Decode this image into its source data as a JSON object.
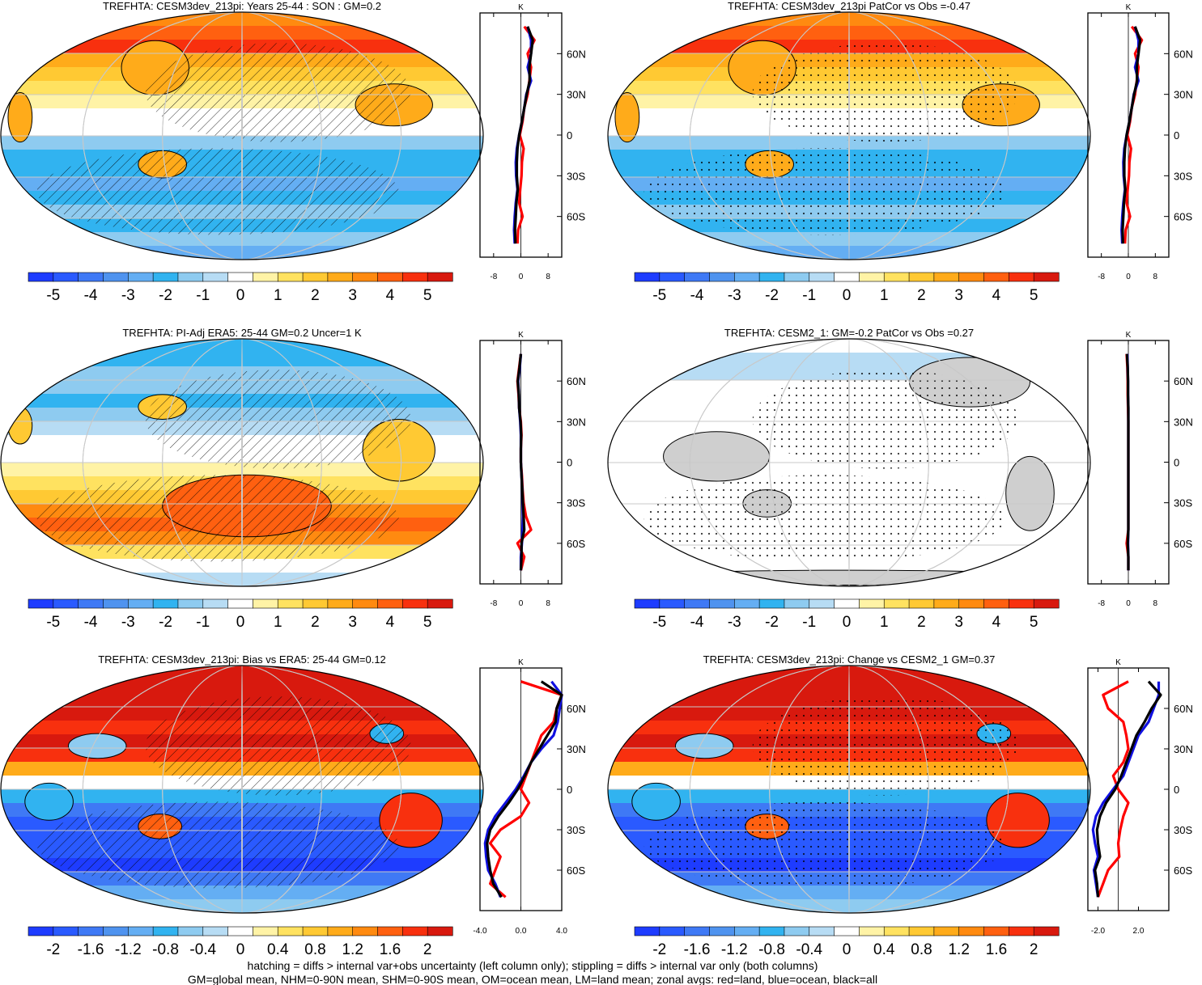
{
  "colors": {
    "fill_scale": [
      "#1e3cff",
      "#2a5aff",
      "#3f79f5",
      "#4f93ef",
      "#64aef3",
      "#31b3f0",
      "#8ecbf0",
      "#b7dcf4",
      "#ffffff",
      "#fff3a6",
      "#ffe260",
      "#ffc933",
      "#ffab1a",
      "#ff8a10",
      "#ff6010",
      "#f8300e",
      "#d8190e"
    ],
    "land_gray": "#cfcfcf",
    "contour_line": "#000000",
    "graticule": "#c8c8c8",
    "zonal_land": "#ff0000",
    "zonal_ocean": "#1010e0",
    "zonal_all": "#000000"
  },
  "chart_data": [
    {
      "type": "heatmap",
      "title": "TREFHTA: CESM3dev_213pi: Years 25-44 : SON : GM=0.2",
      "colorbar_ticks": [
        "-5",
        "-4",
        "-3",
        "-2",
        "-1",
        "0",
        "1",
        "2",
        "3",
        "4",
        "5"
      ],
      "pattern": "hatching",
      "field": "warm_north",
      "zonal_mean": {
        "unit": "K",
        "xticks": [
          "-8",
          "0",
          "8"
        ],
        "xlim": [
          -12,
          12
        ],
        "yticks": [
          "60N",
          "30N",
          "0",
          "30S",
          "60S"
        ],
        "lat": [
          80,
          70,
          60,
          50,
          40,
          30,
          20,
          10,
          0,
          -10,
          -20,
          -30,
          -40,
          -50,
          -60,
          -70,
          -80
        ],
        "land": [
          1,
          4,
          2,
          3,
          2.5,
          2,
          1,
          0.5,
          -0.3,
          0.8,
          0.3,
          0.2,
          -0.2,
          -0.5,
          0.5,
          -0.8,
          -1
        ],
        "ocean": [
          2,
          3,
          3,
          2,
          3,
          1.6,
          1,
          0.3,
          -0.5,
          -1.2,
          -1.5,
          -1.4,
          -1,
          -1.5,
          -1.8,
          -2,
          -1.8
        ],
        "all": [
          2,
          3.5,
          3,
          2.5,
          2.6,
          1.7,
          1,
          0.3,
          -0.5,
          -1,
          -1.2,
          -1.2,
          -0.9,
          -1.3,
          -1.5,
          -1.7,
          -1.6
        ]
      }
    },
    {
      "type": "heatmap",
      "title": "TREFHTA: CESM3dev_213pi PatCor vs Obs =-0.47",
      "colorbar_ticks": [
        "-5",
        "-4",
        "-3",
        "-2",
        "-1",
        "0",
        "1",
        "2",
        "3",
        "4",
        "5"
      ],
      "pattern": "stippling",
      "field": "warm_north",
      "zonal_mean": {
        "unit": "K",
        "xticks": [
          "-8",
          "0",
          "8"
        ],
        "xlim": [
          -12,
          12
        ],
        "yticks": [
          "60N",
          "30N",
          "0",
          "30S",
          "60S"
        ],
        "lat": [
          80,
          70,
          60,
          50,
          40,
          30,
          20,
          10,
          0,
          -10,
          -20,
          -30,
          -40,
          -50,
          -60,
          -70,
          -80
        ],
        "land": [
          1,
          4,
          2,
          3,
          2.5,
          2,
          1,
          0.5,
          -0.3,
          0.8,
          0.3,
          0.2,
          -0.2,
          -0.5,
          0.5,
          -0.8,
          -1
        ],
        "ocean": [
          2,
          3,
          3,
          2,
          3,
          1.6,
          1,
          0.3,
          -0.5,
          -1.2,
          -1.5,
          -1.4,
          -1,
          -1.5,
          -1.8,
          -2,
          -1.8
        ],
        "all": [
          2,
          3.5,
          3,
          2.5,
          2.6,
          1.7,
          1,
          0.3,
          -0.5,
          -1,
          -1.2,
          -1.2,
          -0.9,
          -1.3,
          -1.5,
          -1.7,
          -1.6
        ]
      }
    },
    {
      "type": "heatmap",
      "title": "TREFHTA: PI-Adj ERA5: 25-44 GM=0.2 Uncer=1 K",
      "colorbar_ticks": [
        "-5",
        "-4",
        "-3",
        "-2",
        "-1",
        "0",
        "1",
        "2",
        "3",
        "4",
        "5"
      ],
      "pattern": "hatching",
      "field": "warm_south",
      "zonal_mean": {
        "unit": "K",
        "xticks": [
          "-8",
          "0",
          "8"
        ],
        "xlim": [
          -12,
          12
        ],
        "yticks": [
          "60N",
          "30N",
          "0",
          "30S",
          "60S"
        ],
        "lat": [
          80,
          70,
          60,
          50,
          40,
          30,
          20,
          10,
          0,
          -10,
          -20,
          -30,
          -40,
          -50,
          -60,
          -70,
          -80
        ],
        "land": [
          0,
          -0.5,
          -1,
          -0.7,
          -0.5,
          0,
          0.2,
          0,
          0,
          0.3,
          0.5,
          0.8,
          1.5,
          3,
          -1,
          1,
          0
        ],
        "ocean": [
          0,
          -0.3,
          -0.8,
          -0.6,
          -0.5,
          -0.2,
          0,
          0,
          0,
          0.2,
          0.4,
          0.5,
          0.6,
          0.5,
          0.3,
          0,
          0
        ],
        "all": [
          0,
          -0.4,
          -0.9,
          -0.6,
          -0.5,
          -0.1,
          0.1,
          0,
          0,
          0.2,
          0.4,
          0.6,
          0.8,
          1,
          0.2,
          0.2,
          0
        ]
      }
    },
    {
      "type": "heatmap",
      "title": "TREFHTA: CESM2_1: GM=-0.2 PatCor vs Obs =0.27",
      "colorbar_ticks": [
        "-5",
        "-4",
        "-3",
        "-2",
        "-1",
        "0",
        "1",
        "2",
        "3",
        "4",
        "5"
      ],
      "pattern": "stippling",
      "field": "neutral",
      "zonal_mean": {
        "unit": "K",
        "xticks": [
          "-8",
          "0",
          "8"
        ],
        "xlim": [
          -12,
          12
        ],
        "yticks": [
          "60N",
          "30N",
          "0",
          "30S",
          "60S"
        ],
        "lat": [
          80,
          70,
          60,
          50,
          40,
          30,
          20,
          10,
          0,
          -10,
          -20,
          -30,
          -40,
          -50,
          -60,
          -70,
          -80
        ],
        "land": [
          -0.5,
          -0.3,
          -0.2,
          -0.2,
          -0.1,
          0,
          0,
          0,
          0,
          0,
          0,
          0,
          0,
          0,
          -0.5,
          0,
          0
        ],
        "ocean": [
          -0.3,
          -0.2,
          -0.1,
          -0.1,
          0,
          0,
          0,
          0,
          0,
          0,
          0,
          0,
          0,
          0,
          -0.1,
          0,
          0
        ],
        "all": [
          -0.4,
          -0.2,
          -0.1,
          -0.1,
          0,
          0,
          0,
          0,
          0,
          0,
          0,
          0,
          0,
          0,
          -0.2,
          0,
          0
        ]
      }
    },
    {
      "type": "heatmap",
      "title": "TREFHTA: CESM3dev_213pi: Bias vs ERA5: 25-44  GM=0.12",
      "colorbar_ticks": [
        "-2",
        "-1.6",
        "-1.2",
        "-0.8",
        "-0.4",
        "0",
        "0.4",
        "0.8",
        "1.2",
        "1.6",
        "2"
      ],
      "pattern": "hatching",
      "field": "bias",
      "zonal_mean": {
        "unit": "K",
        "xticks": [
          "-4.0",
          "0.0",
          "4.0"
        ],
        "xlim": [
          -4,
          4
        ],
        "yticks": [
          "60N",
          "30N",
          "0",
          "30S",
          "60S"
        ],
        "lat": [
          80,
          70,
          60,
          50,
          40,
          30,
          20,
          10,
          0,
          -10,
          -20,
          -30,
          -40,
          -50,
          -60,
          -70,
          -80
        ],
        "land": [
          0,
          4,
          3.5,
          3.2,
          2,
          1.5,
          1,
          0.5,
          0,
          0.8,
          0,
          -2,
          -3,
          -2,
          -2.5,
          -3,
          -1.5
        ],
        "ocean": [
          3,
          4,
          3.8,
          3.6,
          3.2,
          2,
          1,
          0.3,
          -0.5,
          -1.5,
          -2.5,
          -3.2,
          -3.5,
          -3.4,
          -3.2,
          -2.5,
          -2
        ],
        "all": [
          2,
          4,
          3.5,
          3.4,
          2.6,
          1.8,
          1,
          0.4,
          -0.3,
          -1.2,
          -2.2,
          -3,
          -3.3,
          -3.2,
          -3,
          -2.7,
          -1.9
        ]
      }
    },
    {
      "type": "heatmap",
      "title": "TREFHTA: CESM3dev_213pi: Change vs CESM2_1 GM=0.37",
      "colorbar_ticks": [
        "-2",
        "-1.6",
        "-1.2",
        "-0.8",
        "-0.4",
        "0",
        "0.4",
        "0.8",
        "1.2",
        "1.6",
        "2"
      ],
      "pattern": "stippling",
      "field": "bias",
      "zonal_mean": {
        "unit": "K",
        "xticks": [
          "-2.0",
          "2.0"
        ],
        "xlim": [
          -3,
          5
        ],
        "yticks": [
          "60N",
          "30N",
          "0",
          "30S",
          "60S"
        ],
        "lat": [
          80,
          70,
          60,
          50,
          40,
          30,
          20,
          10,
          0,
          -10,
          -20,
          -30,
          -40,
          -50,
          -60,
          -70,
          -80
        ],
        "land": [
          1,
          -1.5,
          -1,
          0.5,
          0.8,
          1,
          0.5,
          -0.5,
          0,
          1,
          0.5,
          0.2,
          0,
          0.1,
          -1,
          -1.5,
          -2
        ],
        "ocean": [
          4,
          4,
          3.5,
          3,
          2,
          1.5,
          1,
          0.5,
          -0.5,
          -1.5,
          -2.2,
          -2.5,
          -2.3,
          -2,
          -2.4,
          -2.2,
          -2
        ],
        "all": [
          3,
          4.2,
          3.3,
          2.6,
          1.8,
          1.3,
          0.8,
          0.3,
          -0.3,
          -1.2,
          -1.8,
          -2.1,
          -2,
          -1.8,
          -2.3,
          -2.1,
          -2
        ]
      }
    }
  ],
  "footnotes": [
    "hatching = diffs > internal var+obs uncertainty (left column only); stippling = diffs > internal var only (both columns)",
    "GM=global mean, NHM=0-90N mean, SHM=0-90S mean, OM=ocean mean, LM=land mean; zonal avgs: red=land, blue=ocean, black=all"
  ]
}
